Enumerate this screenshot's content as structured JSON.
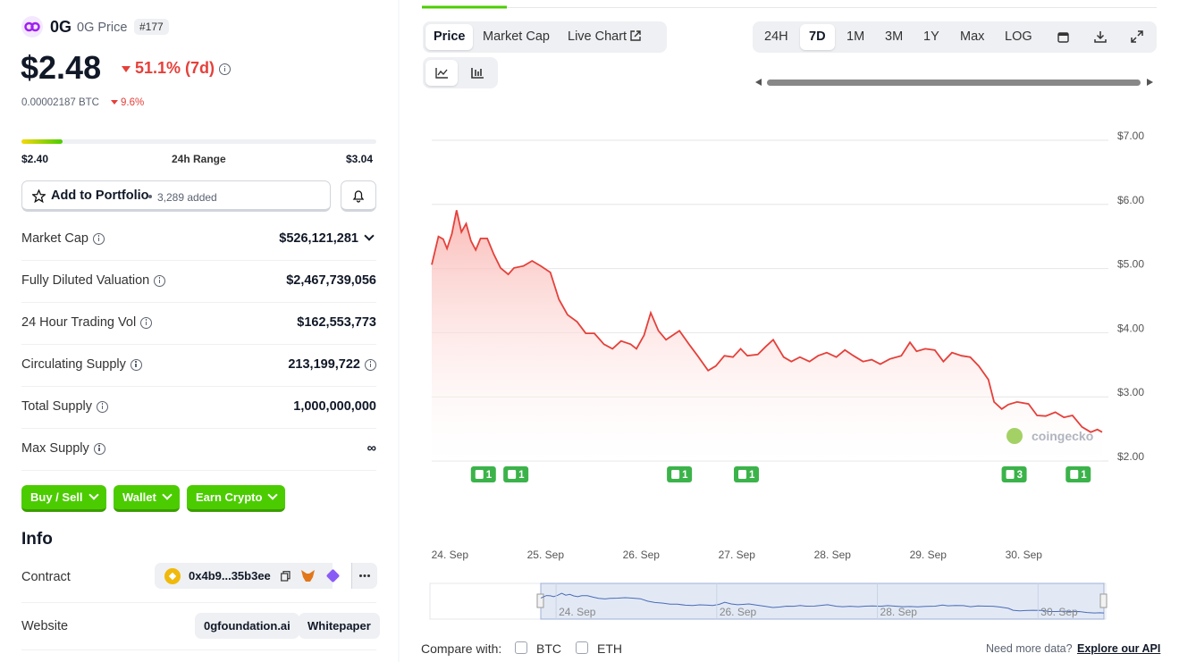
{
  "header": {
    "name": "0G",
    "subtitle": "0G Price",
    "rank": "#177"
  },
  "price": {
    "value": "$2.48",
    "change_7d": "51.1% (7d)",
    "btc": "0.00002187 BTC",
    "btc_change": "9.6%"
  },
  "range": {
    "low": "$2.40",
    "label": "24h Range",
    "high": "$3.04"
  },
  "portfolio": {
    "button": "Add to Portfolio",
    "added": "3,289 added"
  },
  "stats": [
    {
      "label": "Market Cap",
      "value": "$526,121,281"
    },
    {
      "label": "Fully Diluted Valuation",
      "value": "$2,467,739,056"
    },
    {
      "label": "24 Hour Trading Vol",
      "value": "$162,553,773"
    },
    {
      "label": "Circulating Supply",
      "value": "213,199,722"
    },
    {
      "label": "Total Supply",
      "value": "1,000,000,000"
    },
    {
      "label": "Max Supply",
      "value": "∞"
    }
  ],
  "actions": [
    "Buy / Sell",
    "Wallet",
    "Earn Crypto"
  ],
  "info": {
    "title": "Info",
    "contract_label": "Contract",
    "contract": "0x4b9...35b3ee",
    "website_label": "Website",
    "links": [
      "0gfoundation.ai",
      "Whitepaper"
    ]
  },
  "tabs": [
    "Price",
    "Market Cap",
    "Live Chart"
  ],
  "ranges": [
    "24H",
    "7D",
    "1M",
    "3M",
    "1Y",
    "Max",
    "LOG"
  ],
  "chart_data": {
    "type": "line",
    "color": "#e5403a",
    "grid": true,
    "x": [
      -0.19,
      -0.12,
      -0.07,
      -0.03,
      0.02,
      0.07,
      0.12,
      0.17,
      0.22,
      0.27,
      0.32,
      0.39,
      0.46,
      0.53,
      0.61,
      0.67,
      0.77,
      0.86,
      0.95,
      1.05,
      1.14,
      1.23,
      1.33,
      1.42,
      1.51,
      1.61,
      1.7,
      1.79,
      1.89,
      1.95,
      2.03,
      2.1,
      2.18,
      2.26,
      2.33,
      2.4,
      2.5,
      2.59,
      2.7,
      2.78,
      2.87,
      2.96,
      3.04,
      3.11,
      3.22,
      3.3,
      3.38,
      3.49,
      3.57,
      3.66,
      3.76,
      3.85,
      3.94,
      4.04,
      4.13,
      4.22,
      4.32,
      4.41,
      4.5,
      4.6,
      4.72,
      4.81,
      4.88,
      4.97,
      5.07,
      5.16,
      5.25,
      5.35,
      5.44,
      5.53,
      5.63,
      5.69,
      5.77,
      5.84,
      5.93,
      6.05,
      6.14,
      6.23,
      6.33,
      6.42,
      6.51,
      6.61,
      6.7,
      6.77,
      6.82
    ],
    "values": [
      5.06,
      5.5,
      5.46,
      5.31,
      5.54,
      5.91,
      5.57,
      5.7,
      5.43,
      5.29,
      5.47,
      5.47,
      5.22,
      5.01,
      4.91,
      5.01,
      5.04,
      5.12,
      5.04,
      4.94,
      4.52,
      4.28,
      4.17,
      3.99,
      3.99,
      3.82,
      3.75,
      3.87,
      3.82,
      3.75,
      3.96,
      4.31,
      4.03,
      3.89,
      3.96,
      4.03,
      3.82,
      3.64,
      3.41,
      3.48,
      3.64,
      3.62,
      3.75,
      3.64,
      3.66,
      3.78,
      3.89,
      3.62,
      3.55,
      3.62,
      3.55,
      3.64,
      3.69,
      3.62,
      3.73,
      3.64,
      3.55,
      3.58,
      3.51,
      3.59,
      3.64,
      3.85,
      3.71,
      3.75,
      3.73,
      3.55,
      3.69,
      3.64,
      3.62,
      3.48,
      3.27,
      2.92,
      2.81,
      2.88,
      2.92,
      2.89,
      2.71,
      2.7,
      2.76,
      2.68,
      2.71,
      2.53,
      2.45,
      2.49,
      2.45
    ],
    "xlim": [
      -0.19,
      6.82
    ],
    "ylim": [
      2,
      7
    ],
    "xticks": [
      {
        "value": 0,
        "label": "24. Sep"
      },
      {
        "value": 1,
        "label": "25. Sep"
      },
      {
        "value": 2,
        "label": "26. Sep"
      },
      {
        "value": 3,
        "label": "27. Sep"
      },
      {
        "value": 4,
        "label": "28. Sep"
      },
      {
        "value": 5,
        "label": "29. Sep"
      },
      {
        "value": 6,
        "label": "30. Sep"
      }
    ],
    "yticks": [
      {
        "value": 2,
        "label": "$2.00"
      },
      {
        "value": 3,
        "label": "$3.00"
      },
      {
        "value": 4,
        "label": "$4.00"
      },
      {
        "value": 5,
        "label": "$5.00"
      },
      {
        "value": 6,
        "label": "$6.00"
      },
      {
        "value": 7,
        "label": "$7.00"
      }
    ],
    "events": [
      {
        "x": 0.35,
        "label": "1"
      },
      {
        "x": 0.69,
        "label": "1"
      },
      {
        "x": 2.4,
        "label": "1"
      },
      {
        "x": 3.1,
        "label": "1"
      },
      {
        "x": 5.9,
        "label": "3"
      },
      {
        "x": 6.57,
        "label": "1"
      }
    ],
    "navigator_ticks": [
      {
        "value": 0,
        "label": "24. Sep"
      },
      {
        "value": 2,
        "label": "26. Sep"
      },
      {
        "value": 4,
        "label": "28. Sep"
      },
      {
        "value": 6,
        "label": "30. Sep"
      }
    ],
    "watermark": "coingecko"
  },
  "footer": {
    "compare": "Compare with:",
    "options": [
      "BTC",
      "ETH"
    ],
    "more": "Need more data?",
    "link": "Explore our API"
  }
}
